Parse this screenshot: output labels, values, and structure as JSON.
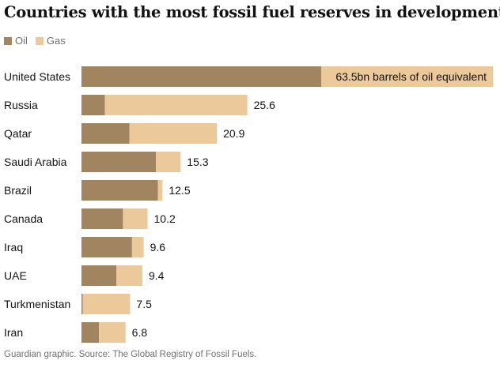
{
  "title": "Countries with the most fossil fuel reserves in development",
  "source": "Guardian graphic. Source: The Global Registry of Fossil Fuels.",
  "colors": {
    "oil": "#a08560",
    "gas": "#ecc99b"
  },
  "chart_data": {
    "type": "bar",
    "orientation": "horizontal",
    "stacked": true,
    "unit": "bn barrels of oil equivalent",
    "categories": [
      "United States",
      "Russia",
      "Qatar",
      "Saudi Arabia",
      "Brazil",
      "Canada",
      "Iraq",
      "UAE",
      "Turkmenistan",
      "Iran"
    ],
    "series": [
      {
        "name": "Oil",
        "values": [
          37.0,
          3.6,
          7.4,
          11.5,
          11.8,
          6.4,
          7.8,
          5.4,
          0.2,
          2.7
        ]
      },
      {
        "name": "Gas",
        "values": [
          26.5,
          22.0,
          13.5,
          3.8,
          0.7,
          3.8,
          1.8,
          4.0,
          7.3,
          4.1
        ]
      }
    ],
    "totals": [
      63.5,
      25.6,
      20.9,
      15.3,
      12.5,
      10.2,
      9.6,
      9.4,
      7.5,
      6.8
    ],
    "total_labels": [
      "63.5bn barrels of oil equivalent",
      "25.6",
      "20.9",
      "15.3",
      "12.5",
      "10.2",
      "9.6",
      "9.4",
      "7.5",
      "6.8"
    ],
    "xlim": [
      0,
      63.5
    ],
    "legend": "top-left",
    "grid": false
  }
}
